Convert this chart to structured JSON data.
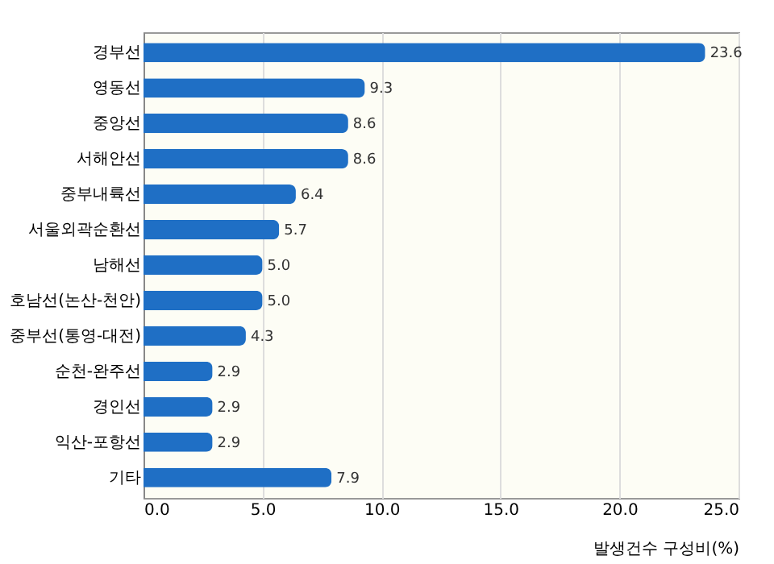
{
  "chart_data": {
    "type": "bar",
    "orientation": "horizontal",
    "xlabel": "발생건수 구성비(%)",
    "categories": [
      "경부선",
      "영동선",
      "중앙선",
      "서해안선",
      "중부내륙선",
      "서울외곽순환선",
      "남해선",
      "호남선(논산-천안)",
      "중부선(통영-대전)",
      "순천-완주선",
      "경인선",
      "익산-포항선",
      "기타"
    ],
    "values": [
      23.6,
      9.3,
      8.6,
      8.6,
      6.4,
      5.7,
      5.0,
      5.0,
      4.3,
      2.9,
      2.9,
      2.9,
      7.9
    ],
    "value_labels": [
      "23.6",
      "9.3",
      "8.6",
      "8.6",
      "6.4",
      "5.7",
      "5.0",
      "5.0",
      "4.3",
      "2.9",
      "2.9",
      "2.9",
      "7.9"
    ],
    "color": "#1f6fc5",
    "xlim": [
      0,
      25
    ],
    "xticks": [
      {
        "value": 0,
        "label": "0.0"
      },
      {
        "value": 5,
        "label": "5.0"
      },
      {
        "value": 10,
        "label": "10.0"
      },
      {
        "value": 15,
        "label": "15.0"
      },
      {
        "value": 20,
        "label": "20.0"
      },
      {
        "value": 25,
        "label": "25.0"
      }
    ],
    "grid": "x"
  }
}
